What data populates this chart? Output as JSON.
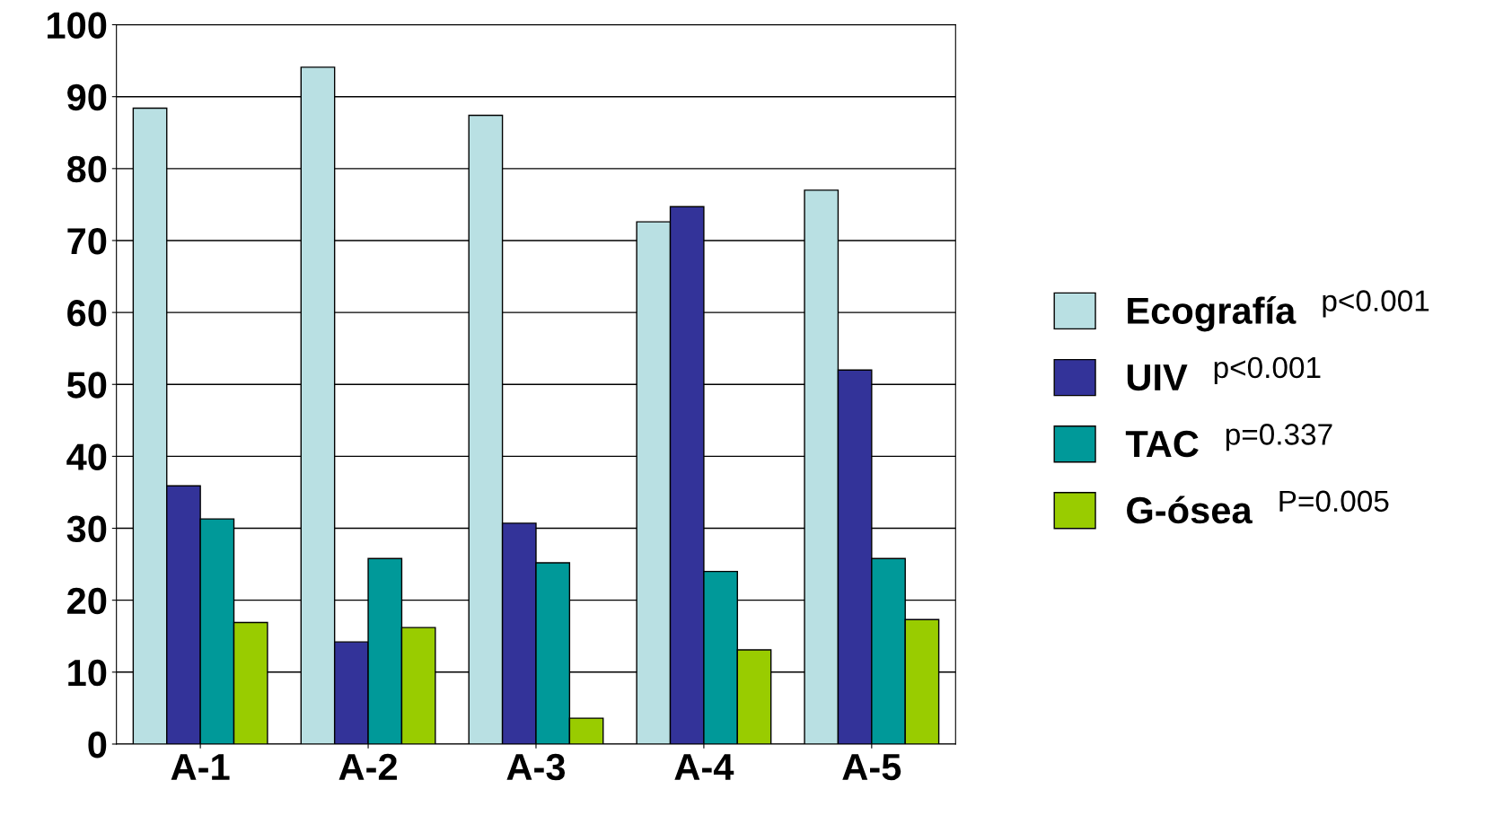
{
  "chart_data": {
    "type": "bar",
    "categories": [
      "A-1",
      "A-2",
      "A-3",
      "A-4",
      "A-5"
    ],
    "series": [
      {
        "name": "Ecografía",
        "color": "#b9e0e3",
        "values": [
          88.4,
          94.1,
          87.4,
          72.6,
          77
        ]
      },
      {
        "name": "UIV",
        "color": "#333399",
        "values": [
          35.9,
          14.2,
          30.7,
          74.7,
          52
        ]
      },
      {
        "name": "TAC",
        "color": "#009999",
        "values": [
          31.3,
          25.8,
          25.2,
          24,
          25.8
        ]
      },
      {
        "name": "G-ósea",
        "color": "#99cc00",
        "values": [
          16.9,
          16.2,
          3.6,
          13.1,
          17.3
        ]
      }
    ],
    "ylim": [
      0,
      100
    ],
    "yticks": [
      0,
      10,
      20,
      30,
      40,
      50,
      60,
      70,
      80,
      90,
      100
    ],
    "grid": "y",
    "legend": "right",
    "annotations": [
      "p<0.001",
      "p<0.001",
      "p=0.337",
      "P=0.005"
    ]
  }
}
